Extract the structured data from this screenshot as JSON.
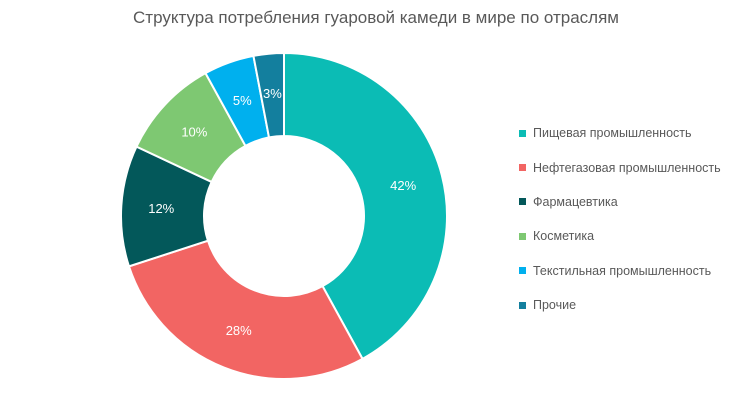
{
  "chart_data": {
    "type": "pie",
    "donut": true,
    "title": "Структура потребления гуаровой камеди в мире по отраслям",
    "categories": [
      "Пищевая промышленность",
      "Нефтегазовая промышленность",
      "Фармацевтика",
      "Косметика",
      "Текстильная промышленность",
      "Прочие"
    ],
    "values": [
      42,
      28,
      12,
      10,
      5,
      3
    ],
    "data_labels": [
      "42%",
      "28%",
      "12%",
      "10%",
      "5%",
      "3%"
    ],
    "colors": [
      "#0bbcb5",
      "#f26563",
      "#03585a",
      "#7ec872",
      "#00b0ee",
      "#137f9e"
    ],
    "legend_position": "right"
  }
}
